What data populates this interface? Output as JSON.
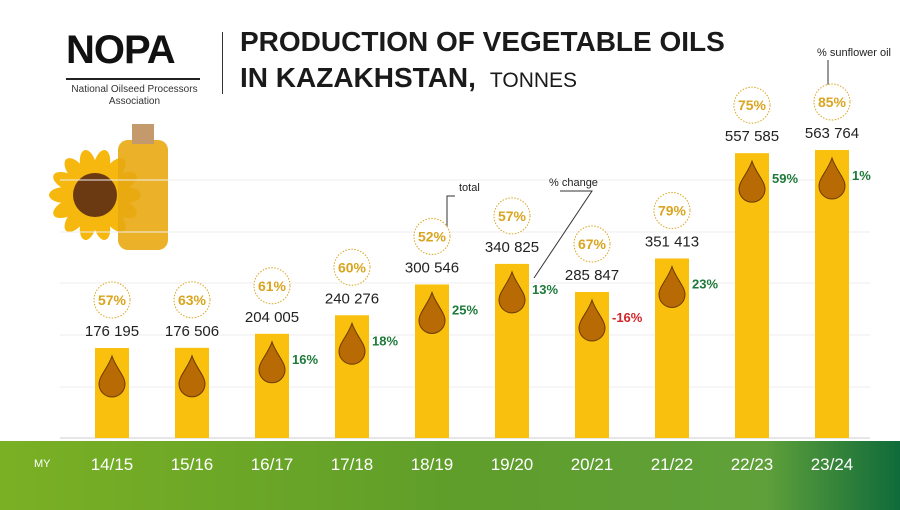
{
  "header": {
    "logo": "NOPA",
    "logo_subtitle": "National Oilseed Processors Association",
    "title_line1": "PRODUCTION OF VEGETABLE OILS",
    "title_line2": "IN KAZAKHSTAN,",
    "unit": "TONNES"
  },
  "annotations": {
    "total": "total",
    "change": "% change",
    "sunflower": "% sunflower oil"
  },
  "colors": {
    "bar": "#f9c10e",
    "positive": "#1e7a3a",
    "negative": "#d2232a",
    "circle": "#d9a520"
  },
  "chart_data": {
    "type": "bar",
    "title": "Production of vegetable oils in Kazakhstan, tonnes",
    "xlabel": "MY",
    "ylabel": "tonnes",
    "categories": [
      "14/15",
      "15/16",
      "16/17",
      "17/18",
      "18/19",
      "19/20",
      "20/21",
      "21/22",
      "22/23",
      "23/24"
    ],
    "values": [
      176195,
      176506,
      204005,
      240276,
      300546,
      340825,
      285847,
      351413,
      557585,
      563764
    ],
    "value_labels": [
      "176 195",
      "176 506",
      "204 005",
      "240 276",
      "300 546",
      "340 825",
      "285 847",
      "351 413",
      "557 585",
      "563 764"
    ],
    "pct_change": [
      null,
      null,
      "16%",
      "18%",
      "25%",
      "13%",
      "-16%",
      "23%",
      "59%",
      "1%"
    ],
    "pct_sunflower": [
      "57%",
      "63%",
      "61%",
      "60%",
      "52%",
      "57%",
      "67%",
      "79%",
      "75%",
      "85%"
    ],
    "ylim": [
      0,
      600000
    ]
  }
}
